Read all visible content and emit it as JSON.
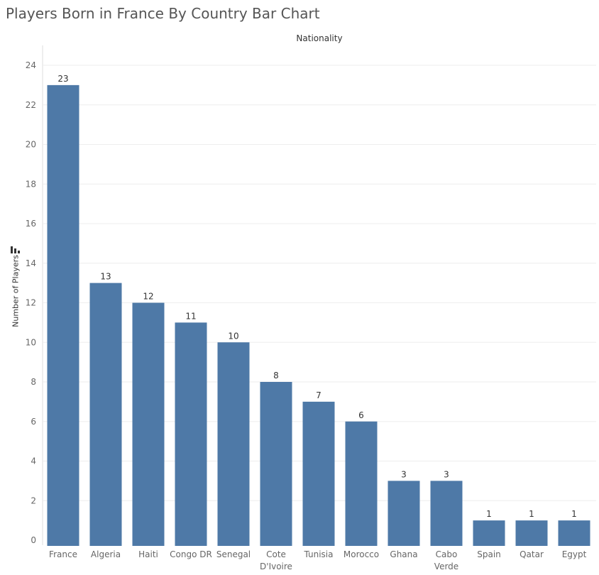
{
  "title": "Players Born in France By Country Bar Chart",
  "column_header": "Nationality",
  "y_axis_title": "Number of Players",
  "y_axis_sort_icon": "sort-descending-icon",
  "colors": {
    "bar": "#4e79a7",
    "gridline": "#eeeeee",
    "axis": "#dddddd"
  },
  "chart_data": {
    "type": "bar",
    "title": "Players Born in France By Country Bar Chart",
    "xlabel": "Nationality",
    "ylabel": "Number of Players",
    "categories": [
      "France",
      "Algeria",
      "Haiti",
      "Congo DR",
      "Senegal",
      "Cote D'Ivoire",
      "Tunisia",
      "Morocco",
      "Ghana",
      "Cabo Verde",
      "Spain",
      "Qatar",
      "Egypt"
    ],
    "category_labels": [
      [
        "France"
      ],
      [
        "Algeria"
      ],
      [
        "Haiti"
      ],
      [
        "Congo DR"
      ],
      [
        "Senegal"
      ],
      [
        "Cote",
        "D'Ivoire"
      ],
      [
        "Tunisia"
      ],
      [
        "Morocco"
      ],
      [
        "Ghana"
      ],
      [
        "Cabo",
        "Verde"
      ],
      [
        "Spain"
      ],
      [
        "Qatar"
      ],
      [
        "Egypt"
      ]
    ],
    "values": [
      23,
      13,
      12,
      11,
      10,
      8,
      7,
      6,
      3,
      3,
      1,
      1,
      1
    ],
    "ylim": [
      0,
      24
    ],
    "yticks": [
      0,
      2,
      4,
      6,
      8,
      10,
      12,
      14,
      16,
      18,
      20,
      22,
      24
    ],
    "grid": true,
    "data_labels": true
  }
}
